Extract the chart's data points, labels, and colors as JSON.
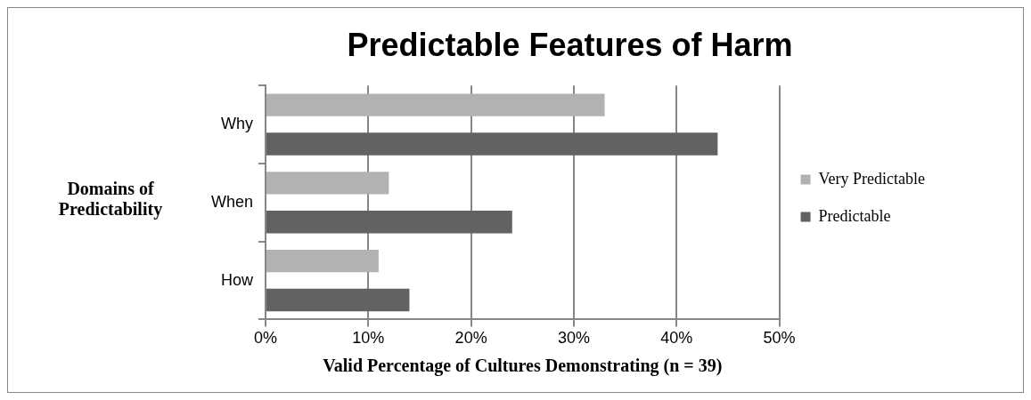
{
  "chart_data": {
    "type": "bar",
    "orientation": "horizontal",
    "title": "Predictable Features of Harm",
    "xlabel": "Valid Percentage of Cultures Demonstrating (n = 39)",
    "ylabel": "Domains of Predictability",
    "categories": [
      "Why",
      "When",
      "How"
    ],
    "series": [
      {
        "name": "Very Predictable",
        "color": "#b2b2b2",
        "values": [
          33,
          12,
          11
        ]
      },
      {
        "name": "Predictable",
        "color": "#626262",
        "values": [
          44,
          24,
          14
        ]
      }
    ],
    "xlim": [
      0,
      50
    ],
    "xticks": [
      {
        "value": 0,
        "label": "0%"
      },
      {
        "value": 10,
        "label": "10%"
      },
      {
        "value": 20,
        "label": "20%"
      },
      {
        "value": 30,
        "label": "30%"
      },
      {
        "value": 40,
        "label": "40%"
      },
      {
        "value": 50,
        "label": "50%"
      }
    ],
    "grid": "x",
    "legend": "right"
  }
}
